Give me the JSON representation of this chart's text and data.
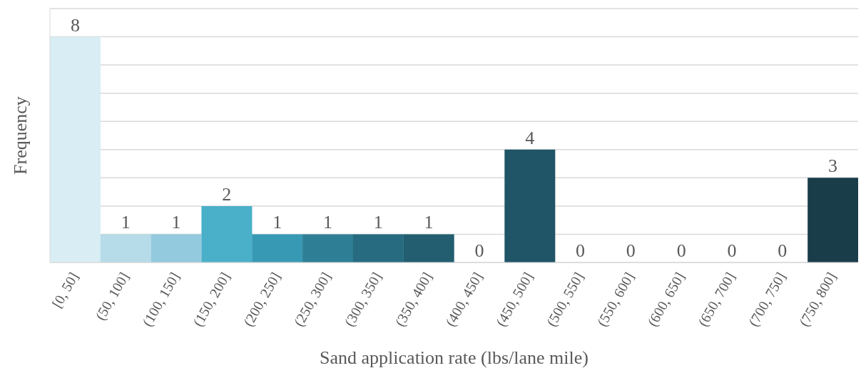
{
  "chart_data": {
    "type": "bar",
    "xlabel": "Sand application rate (lbs/lane mile)",
    "ylabel": "Frequency",
    "categories": [
      "[0, 50]",
      "(50, 100]",
      "(100, 150]",
      "(150, 200]",
      "(200, 250]",
      "(250, 300]",
      "(300, 350]",
      "(350, 400]",
      "(400, 450]",
      "(450, 500]",
      "(500, 550]",
      "(550, 600]",
      "(600, 650]",
      "(650, 700]",
      "(700, 750]",
      "(750, 800]"
    ],
    "values": [
      8,
      1,
      1,
      2,
      1,
      1,
      1,
      1,
      0,
      4,
      0,
      0,
      0,
      0,
      0,
      3
    ],
    "colors": [
      "#d9edf4",
      "#b5dce8",
      "#93cadd",
      "#4aafc9",
      "#3899b5",
      "#2e7f95",
      "#266b80",
      "#225e70",
      "#215a6b",
      "#1f5566",
      "#1e5161",
      "#1d4d5c",
      "#1c4957",
      "#1b4552",
      "#1a414e",
      "#1a3d4a"
    ],
    "ylim": [
      0,
      9
    ],
    "yticks": [
      {
        "value": 0,
        "label": null
      },
      {
        "value": 1,
        "label": null
      },
      {
        "value": 2,
        "label": null
      },
      {
        "value": 3,
        "label": null
      },
      {
        "value": 4,
        "label": null
      },
      {
        "value": 5,
        "label": null
      },
      {
        "value": 6,
        "label": null
      },
      {
        "value": 7,
        "label": null
      },
      {
        "value": 8,
        "label": null
      },
      {
        "value": 9,
        "label": null
      }
    ],
    "grid": "y",
    "data_labels": true
  }
}
